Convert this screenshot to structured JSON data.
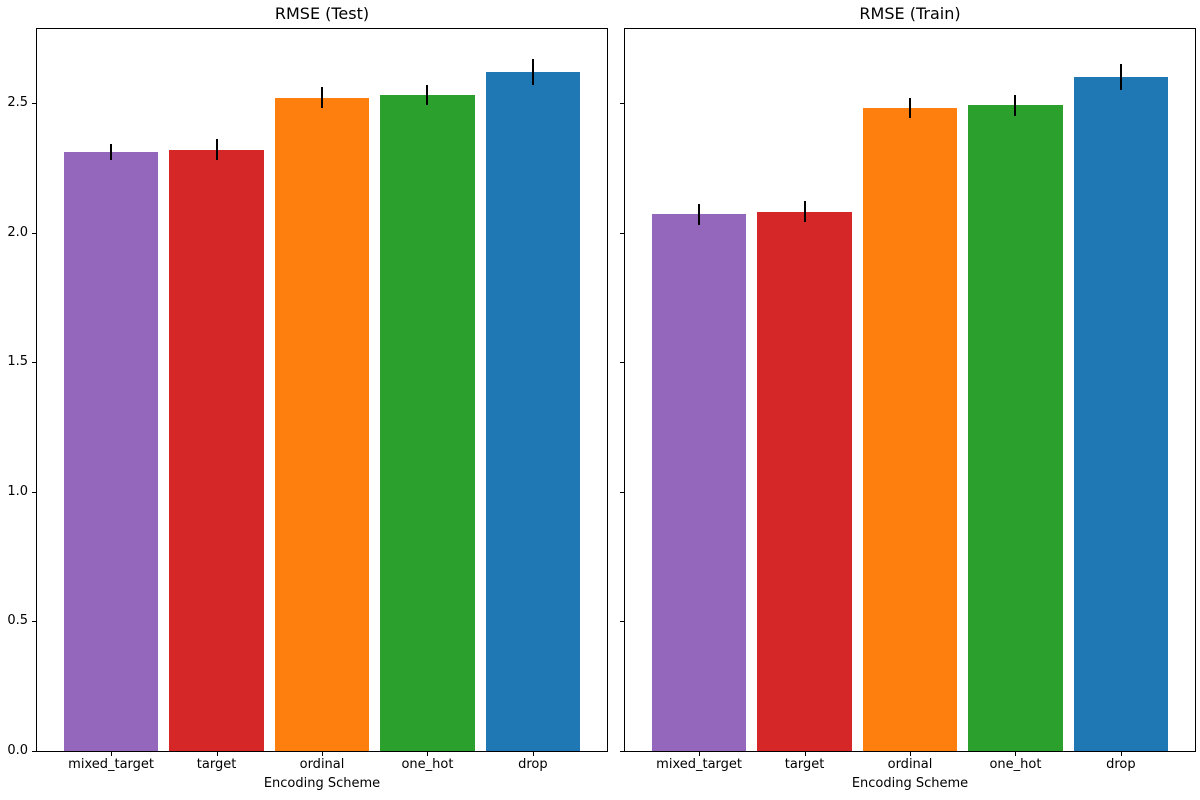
{
  "figure": {
    "background": "#ffffff",
    "spine_color": "#000000",
    "tick_color": "#000000",
    "error_bar_color": "#000000",
    "text_color": "#000000"
  },
  "chart_data": [
    {
      "type": "bar",
      "title": "RMSE (Test)",
      "xlabel": "Encoding Scheme",
      "ylabel": "",
      "categories": [
        "mixed_target",
        "target",
        "ordinal",
        "one_hot",
        "drop"
      ],
      "values": [
        2.31,
        2.32,
        2.52,
        2.53,
        2.62
      ],
      "errors": [
        0.03,
        0.04,
        0.04,
        0.04,
        0.05
      ],
      "bar_colors": [
        "#9467bd",
        "#d62728",
        "#ff7f0e",
        "#2ca02c",
        "#1f77b4"
      ],
      "ylim": [
        0,
        2.785
      ],
      "ytick_values": [
        0.0,
        0.5,
        1.0,
        1.5,
        2.0,
        2.5
      ],
      "ytick_labels": [
        "0.0",
        "0.5",
        "1.0",
        "1.5",
        "2.0",
        "2.5"
      ],
      "show_ytick_labels": true,
      "grid": false,
      "legend": false
    },
    {
      "type": "bar",
      "title": "RMSE (Train)",
      "xlabel": "Encoding Scheme",
      "ylabel": "",
      "categories": [
        "mixed_target",
        "target",
        "ordinal",
        "one_hot",
        "drop"
      ],
      "values": [
        2.07,
        2.08,
        2.48,
        2.49,
        2.6
      ],
      "errors": [
        0.04,
        0.04,
        0.04,
        0.04,
        0.05
      ],
      "bar_colors": [
        "#9467bd",
        "#d62728",
        "#ff7f0e",
        "#2ca02c",
        "#1f77b4"
      ],
      "ylim": [
        0,
        2.785
      ],
      "ytick_values": [
        0.0,
        0.5,
        1.0,
        1.5,
        2.0,
        2.5
      ],
      "ytick_labels": [
        "0.0",
        "0.5",
        "1.0",
        "1.5",
        "2.0",
        "2.5"
      ],
      "show_ytick_labels": false,
      "grid": false,
      "legend": false
    }
  ]
}
